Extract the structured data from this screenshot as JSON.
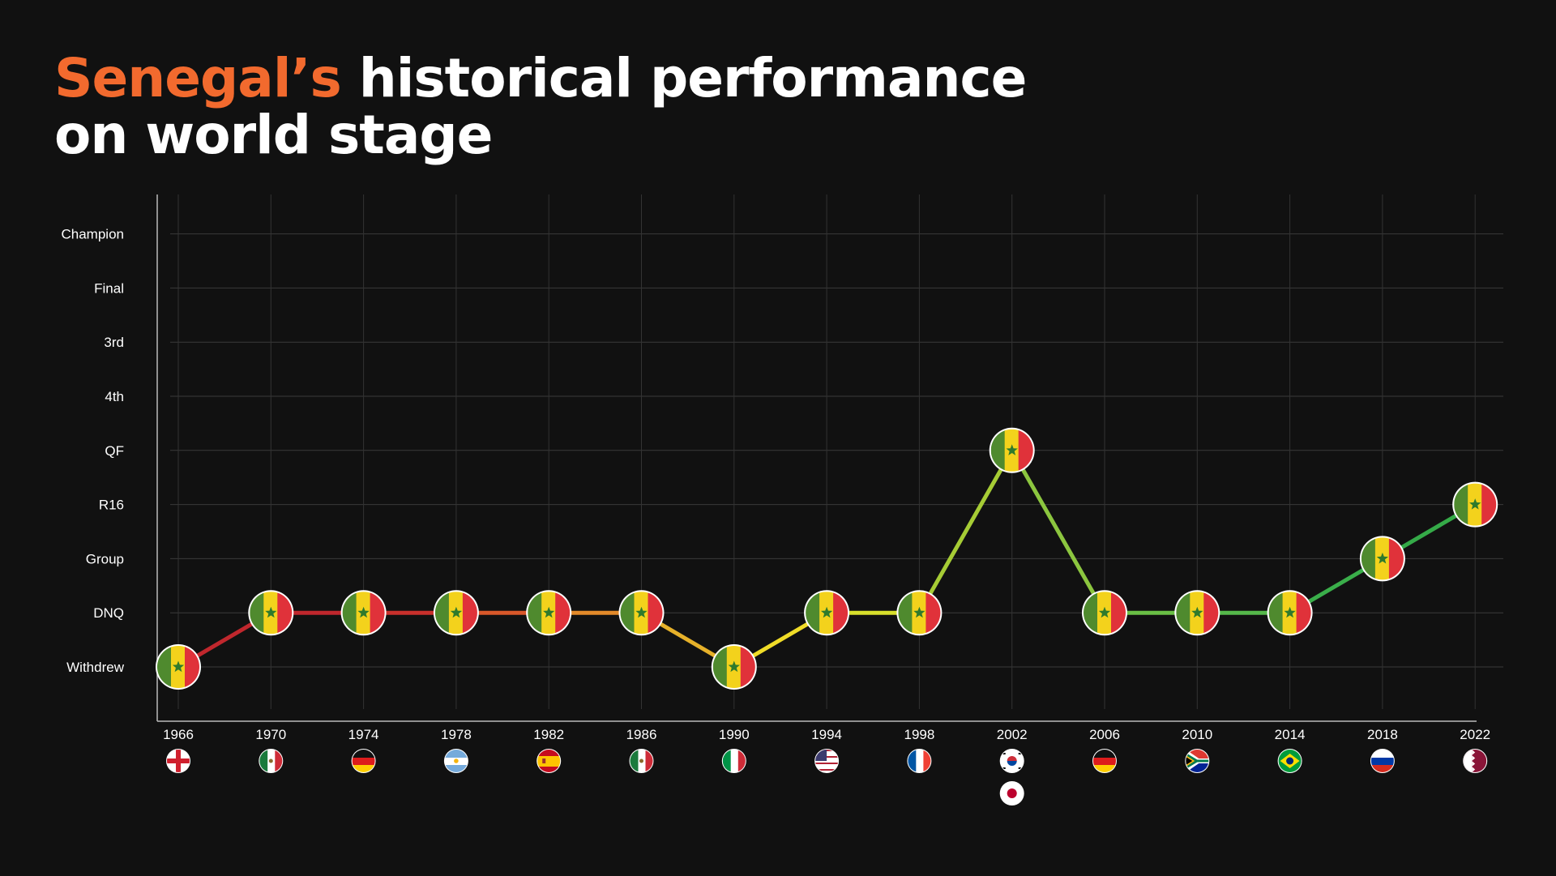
{
  "title": {
    "highlight": "Senegal’s",
    "rest": " historical performance",
    "line2": "on world stage",
    "highlight_color": "#f26a2e"
  },
  "chart_data": {
    "type": "line",
    "title": "Senegal’s historical performance on world stage",
    "y_levels": [
      "Withdrew",
      "DNQ",
      "Group",
      "R16",
      "QF",
      "4th",
      "3rd",
      "Final",
      "Champion"
    ],
    "x": [
      "1966",
      "1970",
      "1974",
      "1978",
      "1982",
      "1986",
      "1990",
      "1994",
      "1998",
      "2002",
      "2006",
      "2010",
      "2014",
      "2018",
      "2022"
    ],
    "values": [
      "Withdrew",
      "DNQ",
      "DNQ",
      "DNQ",
      "DNQ",
      "DNQ",
      "Withdrew",
      "DNQ",
      "DNQ",
      "QF",
      "DNQ",
      "DNQ",
      "DNQ",
      "Group",
      "R16"
    ],
    "segment_colors": [
      "#c0272d",
      "#c0272d",
      "#c9302c",
      "#d9582a",
      "#e38a2a",
      "#e6b12a",
      "#f0dc28",
      "#d8e02c",
      "#a6cc35",
      "#8cc63f",
      "#6abf45",
      "#55b84a",
      "#3aae4a",
      "#35aa48"
    ],
    "marker": "senegal-flag-icon",
    "host_flags": [
      [
        "england-flag-icon"
      ],
      [
        "mexico-flag-icon"
      ],
      [
        "germany-flag-icon"
      ],
      [
        "argentina-flag-icon"
      ],
      [
        "spain-flag-icon"
      ],
      [
        "mexico-flag-icon"
      ],
      [
        "italy-flag-icon"
      ],
      [
        "usa-flag-icon"
      ],
      [
        "france-flag-icon"
      ],
      [
        "south-korea-flag-icon",
        "japan-flag-icon"
      ],
      [
        "germany-flag-icon"
      ],
      [
        "south-africa-flag-icon"
      ],
      [
        "brazil-flag-icon"
      ],
      [
        "russia-flag-icon"
      ],
      [
        "qatar-flag-icon"
      ]
    ],
    "grid": true,
    "legend": "none"
  }
}
